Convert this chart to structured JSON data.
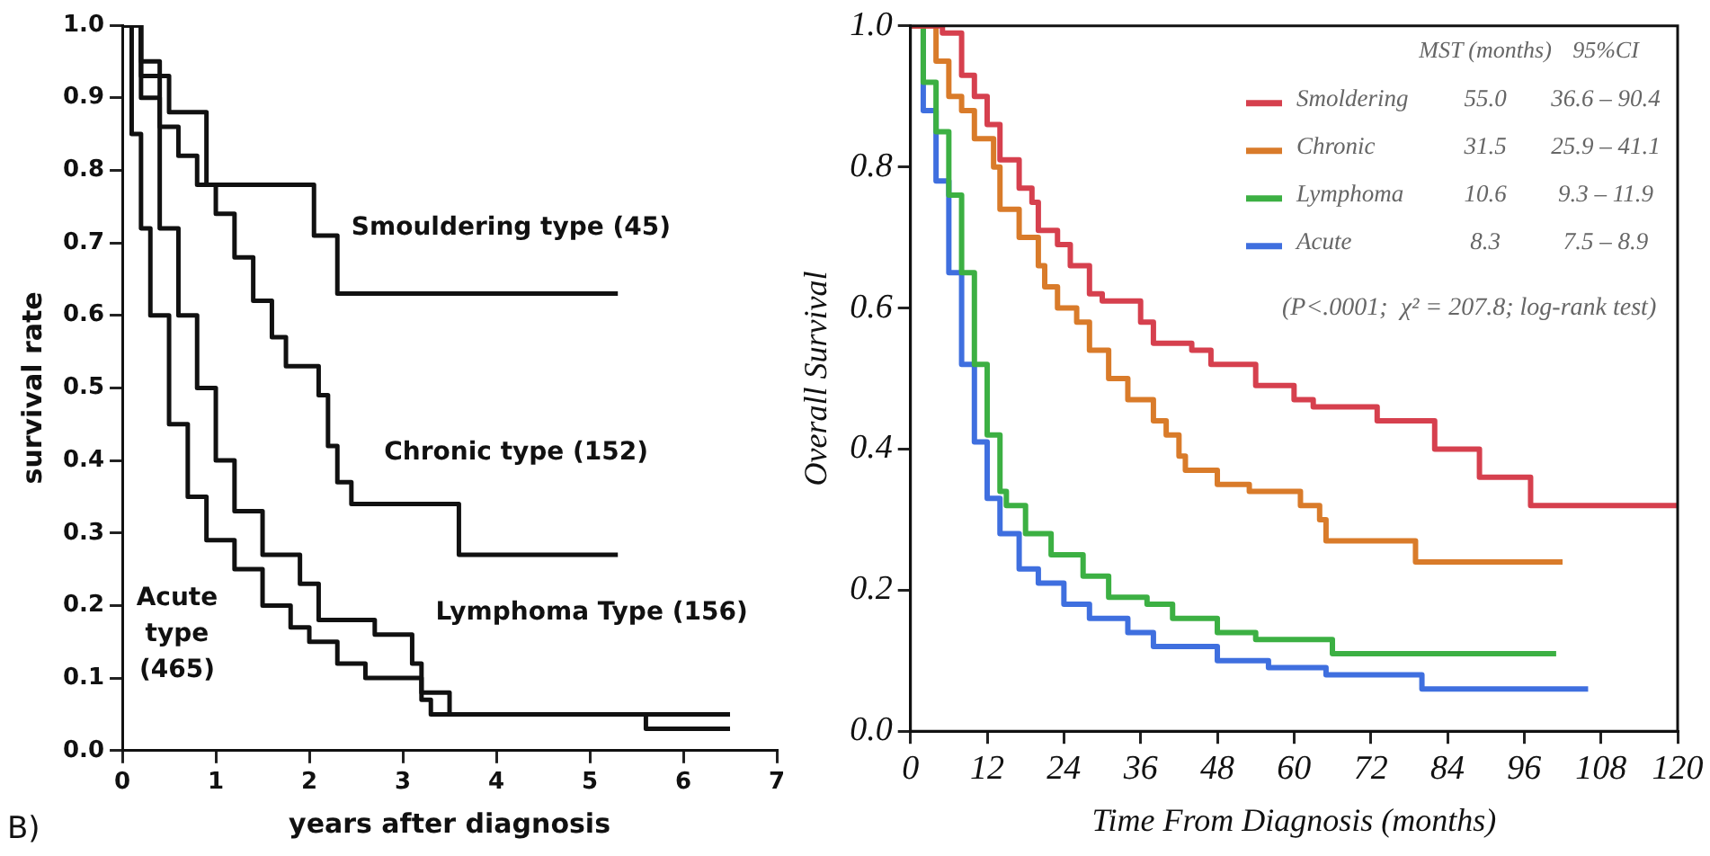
{
  "chart_data": [
    {
      "type": "step",
      "xlabel": "years after diagnosis",
      "ylabel": "survival rate",
      "xlim": [
        0,
        7
      ],
      "xticks": [
        0,
        1,
        2,
        3,
        4,
        5,
        6,
        7
      ],
      "ylim": [
        0,
        1
      ],
      "yticks": [
        {
          "value": 0,
          "label": "0.0"
        },
        {
          "value": 0.1,
          "label": "0.1"
        },
        {
          "value": 0.2,
          "label": "0.2"
        },
        {
          "value": 0.3,
          "label": "0.3"
        },
        {
          "value": 0.4,
          "label": "0.4"
        },
        {
          "value": 0.5,
          "label": "0.5"
        },
        {
          "value": 0.6,
          "label": "0.6"
        },
        {
          "value": 0.7,
          "label": "0.7"
        },
        {
          "value": 0.8,
          "label": "0.8"
        },
        {
          "value": 0.9,
          "label": "0.9"
        },
        {
          "value": 1,
          "label": "1.0"
        }
      ],
      "grid": false,
      "annotations": [
        "B)"
      ],
      "series": [
        {
          "name": "Smouldering type (45)",
          "color": "#111111",
          "x": [
            0,
            0.2,
            0.4,
            0.5,
            0.9,
            2.05,
            2.3,
            5.3
          ],
          "values": [
            1,
            0.95,
            0.93,
            0.88,
            0.78,
            0.71,
            0.63,
            0.63
          ]
        },
        {
          "name": "Chronic type (152)",
          "color": "#111111",
          "x": [
            0,
            0.2,
            0.4,
            0.6,
            0.8,
            1,
            1.2,
            1.4,
            1.6,
            1.75,
            2.1,
            2.2,
            2.3,
            2.45,
            3.6,
            5.3
          ],
          "values": [
            1,
            0.93,
            0.86,
            0.82,
            0.78,
            0.74,
            0.68,
            0.62,
            0.57,
            0.53,
            0.49,
            0.42,
            0.37,
            0.34,
            0.27,
            0.27
          ]
        },
        {
          "name": "Lymphoma Type (156)",
          "color": "#111111",
          "x": [
            0,
            0.2,
            0.4,
            0.6,
            0.8,
            1,
            1.2,
            1.5,
            1.9,
            2.1,
            2.7,
            3.1,
            3.2,
            3.5,
            6.5
          ],
          "values": [
            1,
            0.9,
            0.72,
            0.6,
            0.5,
            0.4,
            0.33,
            0.27,
            0.23,
            0.18,
            0.16,
            0.12,
            0.08,
            0.05,
            0.05
          ]
        },
        {
          "name": "Acute type (465)",
          "color": "#111111",
          "x": [
            0,
            0.1,
            0.2,
            0.3,
            0.5,
            0.7,
            0.9,
            1.2,
            1.5,
            1.8,
            2,
            2.3,
            2.6,
            3.2,
            3.3,
            5.6,
            6.5
          ],
          "values": [
            1,
            0.85,
            0.72,
            0.6,
            0.45,
            0.35,
            0.29,
            0.25,
            0.2,
            0.17,
            0.15,
            0.12,
            0.1,
            0.07,
            0.05,
            0.03,
            0.03
          ]
        }
      ]
    },
    {
      "type": "step",
      "xlabel": "Time From Diagnosis (months)",
      "ylabel": "Overall Survival",
      "xlim": [
        0,
        120
      ],
      "xticks": [
        0,
        12,
        24,
        36,
        48,
        60,
        72,
        84,
        96,
        108,
        120
      ],
      "ylim": [
        0,
        1
      ],
      "yticks": [
        {
          "value": 0,
          "label": "0.0"
        },
        {
          "value": 0.2,
          "label": "0.2"
        },
        {
          "value": 0.4,
          "label": "0.4"
        },
        {
          "value": 0.6,
          "label": "0.6"
        },
        {
          "value": 0.8,
          "label": "0.8"
        },
        {
          "value": 1,
          "label": "1.0"
        }
      ],
      "grid": false,
      "legend": "top right",
      "annotations": [
        "MST (months)",
        "95%CI",
        "55.0",
        "36.6 – 90.4",
        "31.5",
        "25.9 – 41.1",
        "10.6",
        "9.3 – 11.9",
        "8.3",
        "7.5 – 8.9",
        "(P<.0001;  χ² = 207.8; log-rank test)"
      ],
      "series": [
        {
          "name": "Smoldering",
          "color": "#d6404e",
          "x": [
            0,
            5,
            8,
            10,
            12,
            14,
            17,
            19,
            20,
            23,
            25,
            28,
            30,
            36,
            38,
            44,
            47,
            54,
            60,
            63,
            73,
            82,
            89,
            97,
            120
          ],
          "values": [
            1,
            0.99,
            0.93,
            0.9,
            0.86,
            0.81,
            0.77,
            0.75,
            0.71,
            0.69,
            0.66,
            0.62,
            0.61,
            0.58,
            0.55,
            0.54,
            0.52,
            0.49,
            0.47,
            0.46,
            0.44,
            0.4,
            0.36,
            0.32,
            0.32
          ]
        },
        {
          "name": "Chronic",
          "color": "#d97b2a",
          "x": [
            0,
            4,
            6,
            8,
            10,
            13,
            14,
            17,
            20,
            21,
            23,
            26,
            28,
            31,
            34,
            38,
            40,
            42,
            43,
            48,
            53,
            61,
            64,
            65,
            79,
            102
          ],
          "values": [
            1,
            0.95,
            0.9,
            0.88,
            0.84,
            0.8,
            0.74,
            0.7,
            0.66,
            0.63,
            0.6,
            0.58,
            0.54,
            0.5,
            0.47,
            0.44,
            0.42,
            0.39,
            0.37,
            0.35,
            0.34,
            0.32,
            0.3,
            0.27,
            0.24,
            0.24
          ]
        },
        {
          "name": "Lymphoma",
          "color": "#3cb043",
          "x": [
            0,
            2,
            4,
            6,
            8,
            10,
            12,
            14,
            15,
            18,
            22,
            27,
            31,
            37,
            41,
            48,
            54,
            66,
            101
          ],
          "values": [
            1,
            0.92,
            0.85,
            0.76,
            0.65,
            0.52,
            0.42,
            0.34,
            0.32,
            0.28,
            0.25,
            0.22,
            0.19,
            0.18,
            0.16,
            0.14,
            0.13,
            0.11,
            0.11
          ]
        },
        {
          "name": "Acute",
          "color": "#3f6fdf",
          "x": [
            0,
            2,
            4,
            6,
            8,
            10,
            12,
            14,
            17,
            20,
            24,
            28,
            34,
            38,
            48,
            56,
            65,
            80,
            106
          ],
          "values": [
            1,
            0.88,
            0.78,
            0.65,
            0.52,
            0.41,
            0.33,
            0.28,
            0.23,
            0.21,
            0.18,
            0.16,
            0.14,
            0.12,
            0.1,
            0.09,
            0.08,
            0.06,
            0.06
          ]
        }
      ]
    }
  ]
}
